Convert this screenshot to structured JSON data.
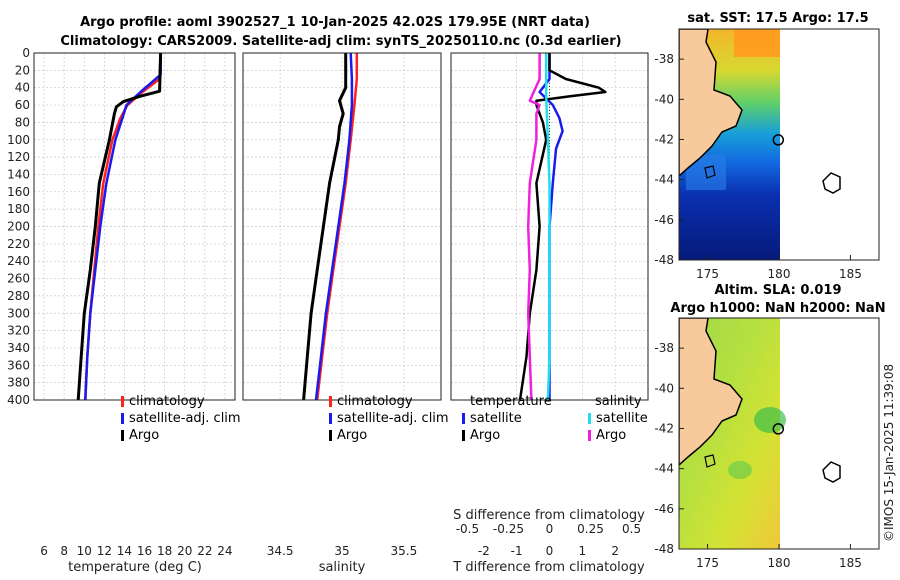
{
  "header": {
    "title_line1": "Argo profile: aoml 3902527_1 10-Jan-2025 42.02S 179.95E (NRT data)",
    "title_line2": "Climatology: CARS2009. Satellite-adj clim: synTS_20250110.nc (0.3d earlier)"
  },
  "colors": {
    "climatology": "#ff2020",
    "satellite_adj": "#1a1aee",
    "argo": "#000000",
    "sal_satellite": "#22ddee",
    "sal_argo": "#ee22dd",
    "land": "#f7c99b"
  },
  "chart_data": [
    {
      "type": "line",
      "name": "temperature-panel",
      "xlabel": "temperature (deg C)",
      "ylabel": "",
      "xlim": [
        5,
        25
      ],
      "ylim": [
        400,
        0
      ],
      "xticks": [
        "6",
        "8",
        "10",
        "12",
        "14",
        "16",
        "18",
        "20",
        "22",
        "24"
      ],
      "yticks": [
        "0",
        "20",
        "40",
        "60",
        "80",
        "100",
        "120",
        "140",
        "160",
        "180",
        "200",
        "220",
        "240",
        "260",
        "280",
        "300",
        "320",
        "340",
        "360",
        "380",
        "400"
      ],
      "legend": [
        "climatology",
        "satellite-adj. clim",
        "Argo"
      ],
      "legend_position": "bottom-right",
      "series": [
        {
          "name": "climatology",
          "depth": [
            0,
            30,
            45,
            60,
            75,
            100,
            150,
            200,
            250,
            300,
            350,
            400
          ],
          "values": [
            17.6,
            17.5,
            15.8,
            14.3,
            13.6,
            12.8,
            11.9,
            11.4,
            11.0,
            10.6,
            10.3,
            10.1
          ]
        },
        {
          "name": "satellite-adj. clim",
          "depth": [
            0,
            25,
            45,
            60,
            75,
            100,
            150,
            200,
            250,
            300,
            350,
            400
          ],
          "values": [
            17.6,
            17.6,
            15.6,
            14.2,
            13.8,
            13.1,
            12.2,
            11.6,
            11.1,
            10.6,
            10.3,
            10.1
          ]
        },
        {
          "name": "Argo",
          "depth": [
            0,
            44,
            50,
            56,
            62,
            70,
            100,
            150,
            200,
            250,
            300,
            350,
            400
          ],
          "values": [
            17.6,
            17.5,
            15.5,
            13.9,
            13.2,
            13.0,
            12.5,
            11.5,
            11.1,
            10.6,
            10.0,
            9.7,
            9.4
          ]
        }
      ]
    },
    {
      "type": "line",
      "name": "salinity-panel",
      "xlabel": "salinity",
      "ylabel": "",
      "xlim": [
        34.2,
        35.8
      ],
      "ylim": [
        400,
        0
      ],
      "xticks": [
        "34.5",
        "35",
        "35.5"
      ],
      "legend": [
        "climatology",
        "satellite-adj. clim",
        "Argo"
      ],
      "legend_position": "bottom-right",
      "series": [
        {
          "name": "climatology",
          "depth": [
            0,
            30,
            60,
            100,
            150,
            200,
            250,
            300,
            350,
            400
          ],
          "values": [
            35.12,
            35.12,
            35.1,
            35.07,
            35.03,
            34.98,
            34.93,
            34.88,
            34.84,
            34.8
          ]
        },
        {
          "name": "satellite-adj. clim",
          "depth": [
            0,
            30,
            60,
            100,
            150,
            200,
            250,
            300,
            350,
            400
          ],
          "values": [
            35.07,
            35.08,
            35.08,
            35.06,
            35.02,
            34.97,
            34.92,
            34.87,
            34.83,
            34.79
          ]
        },
        {
          "name": "Argo",
          "depth": [
            0,
            40,
            55,
            70,
            85,
            100,
            150,
            200,
            250,
            300,
            350,
            400
          ],
          "values": [
            35.03,
            35.03,
            34.98,
            35.01,
            34.98,
            34.97,
            34.9,
            34.85,
            34.8,
            34.75,
            34.72,
            34.69
          ]
        }
      ]
    },
    {
      "type": "line",
      "name": "difference-panel",
      "xlabel": "T difference from climatology",
      "x2label": "S difference from climatology",
      "xlim": [
        -3,
        3
      ],
      "ylim": [
        400,
        0
      ],
      "xticks": [
        "-2",
        "-1",
        "0",
        "1",
        "2"
      ],
      "x2ticks": [
        "-0.5",
        "-0.25",
        "0",
        "0.25",
        "0.5"
      ],
      "legend_temperature_title": "temperature",
      "legend_salinity_title": "salinity",
      "legend_temperature": [
        "satellite",
        "Argo"
      ],
      "legend_salinity": [
        "satellite",
        "Argo"
      ],
      "series": [
        {
          "name": "T satellite",
          "depth": [
            0,
            30,
            45,
            60,
            75,
            90,
            110,
            150,
            200,
            250,
            300,
            350,
            400
          ],
          "values": [
            0.0,
            0.0,
            -0.3,
            0.1,
            0.3,
            0.4,
            0.2,
            0.1,
            0.0,
            0.0,
            0.0,
            0.0,
            0.0
          ]
        },
        {
          "name": "T Argo",
          "depth": [
            0,
            20,
            30,
            40,
            45,
            50,
            55,
            60,
            70,
            80,
            100,
            150,
            200,
            250,
            300,
            350,
            400
          ],
          "values": [
            0.0,
            0.0,
            0.5,
            1.5,
            1.7,
            0.6,
            -0.4,
            -0.4,
            -0.3,
            -0.2,
            -0.1,
            -0.4,
            -0.3,
            -0.4,
            -0.6,
            -0.7,
            -0.9
          ]
        },
        {
          "name": "S satellite",
          "depth": [
            0,
            50,
            100,
            150,
            200,
            250,
            300,
            350,
            400
          ],
          "values": [
            -0.02,
            -0.02,
            -0.01,
            0.0,
            0.0,
            0.0,
            0.0,
            0.0,
            -0.01
          ]
        },
        {
          "name": "S Argo",
          "depth": [
            0,
            30,
            55,
            60,
            70,
            100,
            150,
            200,
            250,
            300,
            350,
            400
          ],
          "values": [
            -0.06,
            -0.06,
            -0.12,
            -0.06,
            -0.08,
            -0.08,
            -0.12,
            -0.13,
            -0.12,
            -0.13,
            -0.12,
            -0.11
          ]
        }
      ]
    },
    {
      "type": "heatmap",
      "name": "sst-map",
      "title": "sat. SST: 17.5 Argo: 17.5",
      "xticks": [
        "175",
        "180",
        "185"
      ],
      "yticks": [
        "-38",
        "-40",
        "-42",
        "-44",
        "-46",
        "-48"
      ],
      "xlim": [
        173,
        187
      ],
      "ylim": [
        -48,
        -36.5
      ],
      "argo_position": [
        179.95,
        -42.02
      ]
    },
    {
      "type": "heatmap",
      "name": "sla-map",
      "title_line1": "Altim. SLA: 0.019",
      "title_line2": "Argo h1000: NaN h2000: NaN",
      "xticks": [
        "175",
        "180",
        "185"
      ],
      "yticks": [
        "-38",
        "-40",
        "-42",
        "-44",
        "-46",
        "-48"
      ],
      "xlim": [
        173,
        187
      ],
      "ylim": [
        -48,
        -36.5
      ],
      "argo_position": [
        179.95,
        -42.02
      ]
    }
  ],
  "footer": {
    "credit": "©IMOS 15-Jan-2025 11:39:08"
  }
}
